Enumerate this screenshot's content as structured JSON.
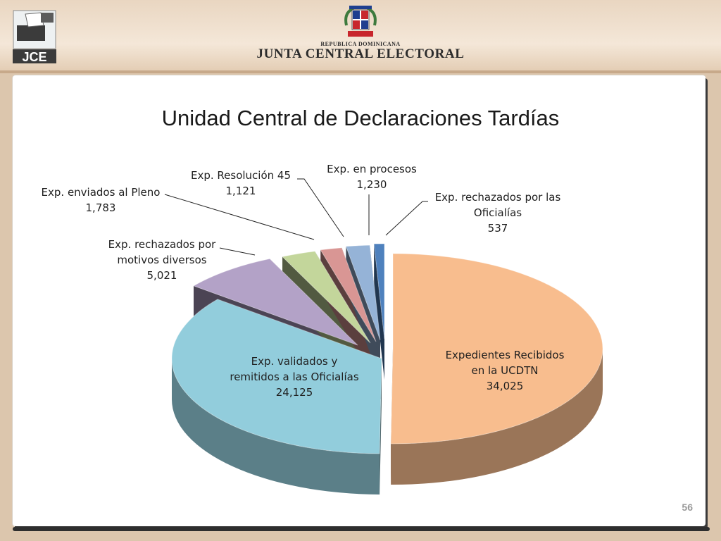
{
  "header": {
    "logo_text": "JCE",
    "republica": "REPUBLICA DOMINICANA",
    "title": "JUNTA CENTRAL ELECTORAL"
  },
  "page_number": "56",
  "colors": {
    "recibidos": "#f8bd8e",
    "validados": "#92cddc",
    "motivos": "#b3a2c7",
    "pleno": "#c3d69b",
    "resolucion": "#d99694",
    "procesos": "#95b3d7",
    "oficialias": "#4f81bd"
  },
  "chart_data": {
    "type": "pie",
    "title": "Unidad Central de Declaraciones Tardías",
    "slices": [
      {
        "key": "recibidos",
        "label_lines": [
          "Expedientes Recibidos",
          "en la UCDTN"
        ],
        "value_text": "34,025",
        "value": 34025
      },
      {
        "key": "validados",
        "label_lines": [
          "Exp. validados y",
          "remitidos a las Oficialías"
        ],
        "value_text": "24,125",
        "value": 24125
      },
      {
        "key": "motivos",
        "label_lines": [
          "Exp. rechazados por",
          "motivos diversos"
        ],
        "value_text": "5,021",
        "value": 5021
      },
      {
        "key": "pleno",
        "label_lines": [
          "Exp. enviados al Pleno"
        ],
        "value_text": "1,783",
        "value": 1783
      },
      {
        "key": "resolucion",
        "label_lines": [
          "Exp. Resolución 45"
        ],
        "value_text": "1,121",
        "value": 1121
      },
      {
        "key": "procesos",
        "label_lines": [
          "Exp. en procesos"
        ],
        "value_text": "1,230",
        "value": 1230
      },
      {
        "key": "oficialias",
        "label_lines": [
          "Exp. rechazados por las",
          "Oficialías"
        ],
        "value_text": "537",
        "value": 537
      }
    ]
  }
}
